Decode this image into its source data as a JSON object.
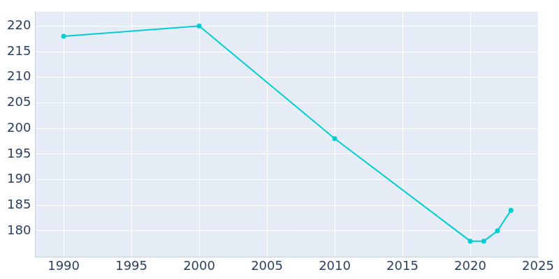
{
  "chart_data": {
    "type": "line",
    "x": [
      1990,
      2000,
      2010,
      2020,
      2021,
      2022,
      2023
    ],
    "values": [
      218,
      220,
      198,
      178,
      178,
      180,
      184
    ],
    "color": "#00CED1",
    "marker": "circle",
    "xlim": [
      1987.9,
      2025
    ],
    "xticks": [
      1990,
      1995,
      2000,
      2005,
      2010,
      2015,
      2020,
      2025
    ],
    "ylim": [
      174.9,
      222.8
    ],
    "yticks": [
      180,
      185,
      190,
      195,
      200,
      205,
      210,
      215,
      220
    ],
    "grid": true
  }
}
